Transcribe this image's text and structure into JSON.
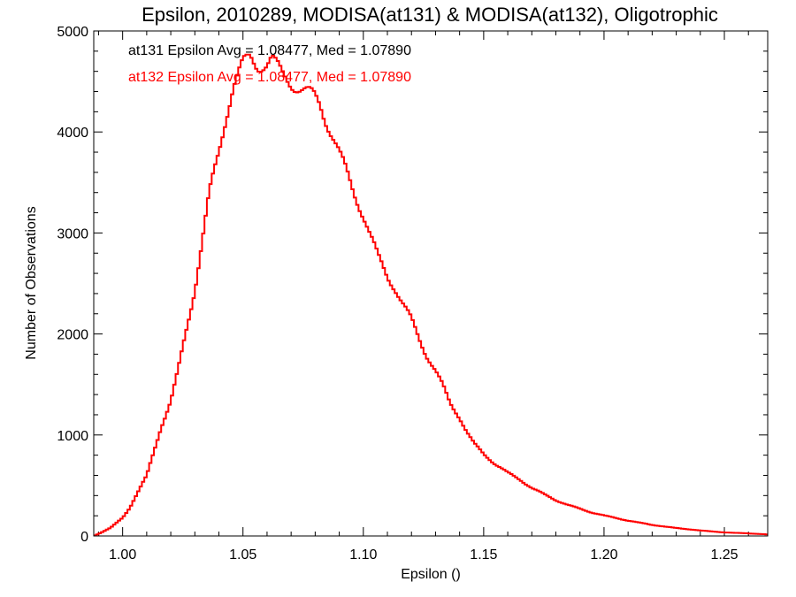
{
  "chart_data": {
    "type": "step",
    "title": "Epsilon, 2010289, MODISA(at131) & MODISA(at132), Oligotrophic",
    "xlabel": "Epsilon ()",
    "ylabel": "Number of Observations",
    "xlim": [
      0.988,
      1.268
    ],
    "ylim": [
      0,
      5000
    ],
    "x_ticks": [
      1.0,
      1.05,
      1.1,
      1.15,
      1.2,
      1.25
    ],
    "x_tick_labels": [
      "1.00",
      "1.05",
      "1.10",
      "1.15",
      "1.20",
      "1.25"
    ],
    "y_ticks": [
      0,
      1000,
      2000,
      3000,
      4000,
      5000
    ],
    "y_tick_labels": [
      "0",
      "1000",
      "2000",
      "3000",
      "4000",
      "5000"
    ],
    "annotations": [
      {
        "text": "at131 Epsilon Avg = 1.08477, Med = 1.07890",
        "color": "#000000"
      },
      {
        "text": "at132 Epsilon Avg = 1.08477, Med = 1.07890",
        "color": "#ff0000"
      }
    ],
    "series": [
      {
        "color": "#ff0000",
        "x": [
          0.988,
          0.99,
          0.995,
          1.0,
          1.003,
          1.006,
          1.01,
          1.013,
          1.016,
          1.02,
          1.023,
          1.026,
          1.03,
          1.033,
          1.036,
          1.04,
          1.043,
          1.046,
          1.05,
          1.053,
          1.056,
          1.06,
          1.062,
          1.064,
          1.066,
          1.068,
          1.07,
          1.072,
          1.074,
          1.076,
          1.078,
          1.08,
          1.082,
          1.084,
          1.087,
          1.09,
          1.093,
          1.096,
          1.1,
          1.103,
          1.106,
          1.11,
          1.113,
          1.116,
          1.12,
          1.123,
          1.126,
          1.13,
          1.133,
          1.136,
          1.14,
          1.143,
          1.146,
          1.15,
          1.155,
          1.16,
          1.165,
          1.17,
          1.175,
          1.18,
          1.185,
          1.19,
          1.195,
          1.2,
          1.21,
          1.22,
          1.23,
          1.24,
          1.25,
          1.26,
          1.268
        ],
        "y": [
          0,
          20,
          80,
          180,
          280,
          420,
          600,
          850,
          1100,
          1350,
          1650,
          2000,
          2450,
          2900,
          3350,
          3750,
          4100,
          4400,
          4620,
          4700,
          4650,
          4700,
          4760,
          4700,
          4640,
          4600,
          4560,
          4520,
          4480,
          4450,
          4420,
          4380,
          4300,
          4150,
          3950,
          3750,
          3560,
          3360,
          3130,
          2930,
          2750,
          2570,
          2470,
          2330,
          2170,
          2000,
          1830,
          1650,
          1500,
          1320,
          1170,
          1020,
          900,
          800,
          700,
          620,
          560,
          480,
          420,
          360,
          310,
          270,
          230,
          200,
          150,
          110,
          80,
          55,
          35,
          25,
          15
        ]
      }
    ]
  }
}
